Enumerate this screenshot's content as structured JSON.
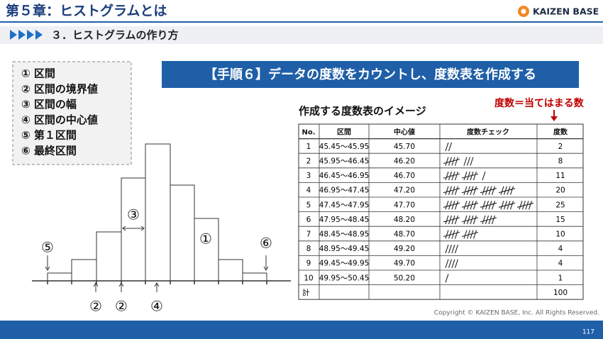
{
  "header": {
    "title": "第５章：ヒストグラムとは",
    "logo": "KAIZEN BASE",
    "subtitle": "３．ヒストグラムの作り方"
  },
  "legend_box": {
    "items": [
      "① 区間",
      "② 区間の境界値",
      "③ 区間の幅",
      "④ 区間の中心値",
      "⑤ 第１区間",
      "⑥ 最終区間"
    ]
  },
  "banner": "【手順６】データの度数をカウントし、度数表を作成する",
  "diagram": {
    "labels": [
      "⑤",
      "⑥",
      "③",
      "①",
      "②",
      "②",
      "④"
    ]
  },
  "table": {
    "title": "作成する度数表のイメージ",
    "annotation": "度数＝当てはまる数",
    "columns": [
      "No.",
      "区間",
      "中心値",
      "度数チェック",
      "度数"
    ],
    "rows": [
      [
        1,
        "45.45～45.95",
        "45.70",
        2
      ],
      [
        2,
        "45.95～46.45",
        "46.20",
        8
      ],
      [
        3,
        "46.45～46.95",
        "46.70",
        11
      ],
      [
        4,
        "46.95～47.45",
        "47.20",
        20
      ],
      [
        5,
        "47.45～47.95",
        "47.70",
        25
      ],
      [
        6,
        "47.95～48.45",
        "48.20",
        15
      ],
      [
        7,
        "48.45～48.95",
        "48.70",
        10
      ],
      [
        8,
        "48.95～49.45",
        "49.20",
        4
      ],
      [
        9,
        "49.45～49.95",
        "49.70",
        4
      ],
      [
        10,
        "49.95～50.45",
        "50.20",
        1
      ]
    ],
    "total": {
      "label": "計",
      "count": 100
    }
  },
  "footer": {
    "copyright": "Copyright © KAIZEN BASE, Inc. All Rights Reserved.",
    "page": 117
  }
}
